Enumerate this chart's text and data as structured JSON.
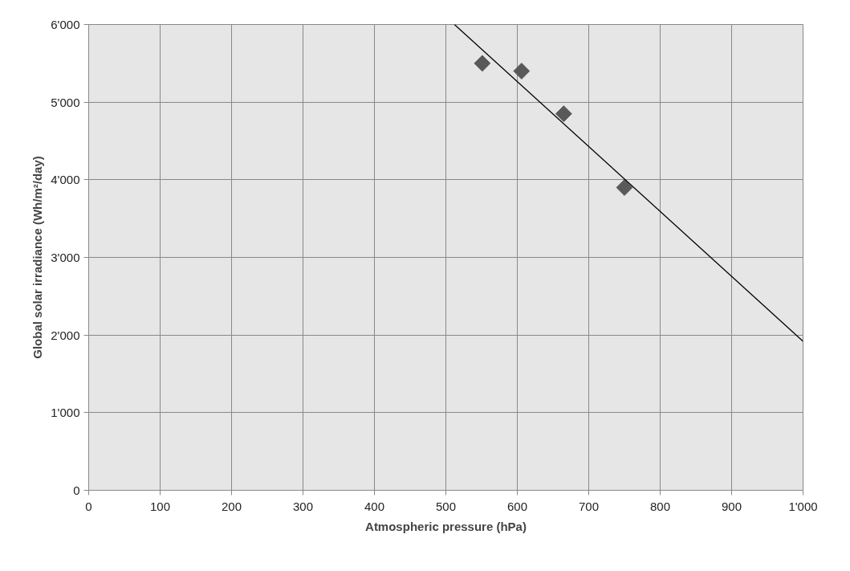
{
  "chart_data": {
    "type": "scatter",
    "xlabel": "Atmospheric pressure (hPa)",
    "ylabel": "Global solar irradiance (Wh/m²/day)",
    "xlim": [
      0,
      1000
    ],
    "ylim": [
      0,
      6000
    ],
    "xticks": [
      0,
      100,
      200,
      300,
      400,
      500,
      600,
      700,
      800,
      900,
      {
        "value": 1000,
        "label": "1'000"
      }
    ],
    "yticks": [
      0,
      {
        "value": 1000,
        "label": "1'000"
      },
      {
        "value": 2000,
        "label": "2'000"
      },
      {
        "value": 3000,
        "label": "3'000"
      },
      {
        "value": 4000,
        "label": "4'000"
      },
      {
        "value": 5000,
        "label": "5'000"
      },
      {
        "value": 6000,
        "label": "6'000"
      }
    ],
    "grid": true,
    "marker": "diamond",
    "series": [
      {
        "color": "#595959",
        "x": [
          551,
          606,
          665,
          750
        ],
        "values": [
          5500,
          5400,
          4850,
          3900
        ]
      },
      {
        "type": "line",
        "color": "#000000",
        "x": [
          512,
          1000
        ],
        "values": [
          6000,
          1920
        ],
        "marker": "none"
      }
    ]
  }
}
